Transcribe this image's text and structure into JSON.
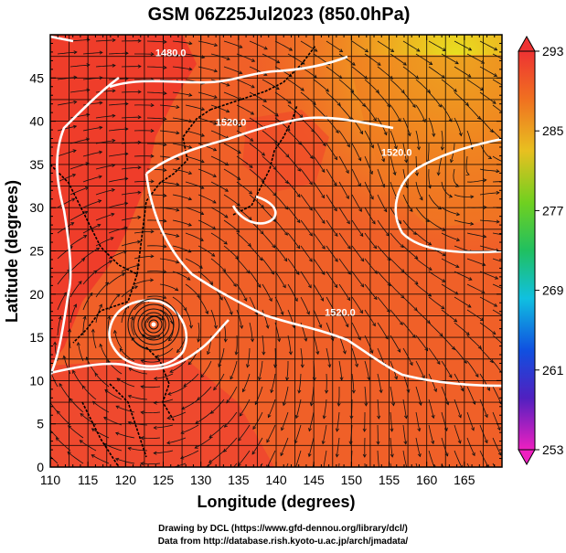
{
  "title": "GSM 06Z25Jul2023 (850.0hPa)",
  "axes": {
    "xlabel": "Longitude (degrees)",
    "ylabel": "Latitude  (degrees)",
    "xlim": [
      110,
      170
    ],
    "ylim": [
      0,
      50
    ],
    "xticks": [
      "110",
      "115",
      "120",
      "125",
      "130",
      "135",
      "140",
      "145",
      "150",
      "155",
      "160",
      "165"
    ],
    "yticks": [
      "0",
      "5",
      "10",
      "15",
      "20",
      "25",
      "30",
      "35",
      "40",
      "45"
    ]
  },
  "colorbar": {
    "min": 253,
    "max": 293,
    "ticks": [
      "293",
      "285",
      "277",
      "269",
      "261",
      "253"
    ]
  },
  "contour_labels": [
    {
      "text": "1480.0",
      "lon": 126,
      "lat": 47.5
    },
    {
      "text": "1520.0",
      "lon": 134,
      "lat": 39.5
    },
    {
      "text": "1520.0",
      "lon": 148.5,
      "lat": 17.5
    },
    {
      "text": "1520.0",
      "lon": 156,
      "lat": 36
    }
  ],
  "typhoon_center": {
    "lon": 124,
    "lat": 18
  },
  "colors": {
    "warm": "#ee3322",
    "hot": "#ff5533",
    "orange": "#f08020",
    "yellow": "#e8e020",
    "contour": "#ffffff"
  },
  "credits": {
    "line1": "Drawing by DCL (https://www.gfd-dennou.org/library/dcl/)",
    "line2": "Data from http://database.rish.kyoto-u.ac.jp/arch/jmadata/"
  }
}
